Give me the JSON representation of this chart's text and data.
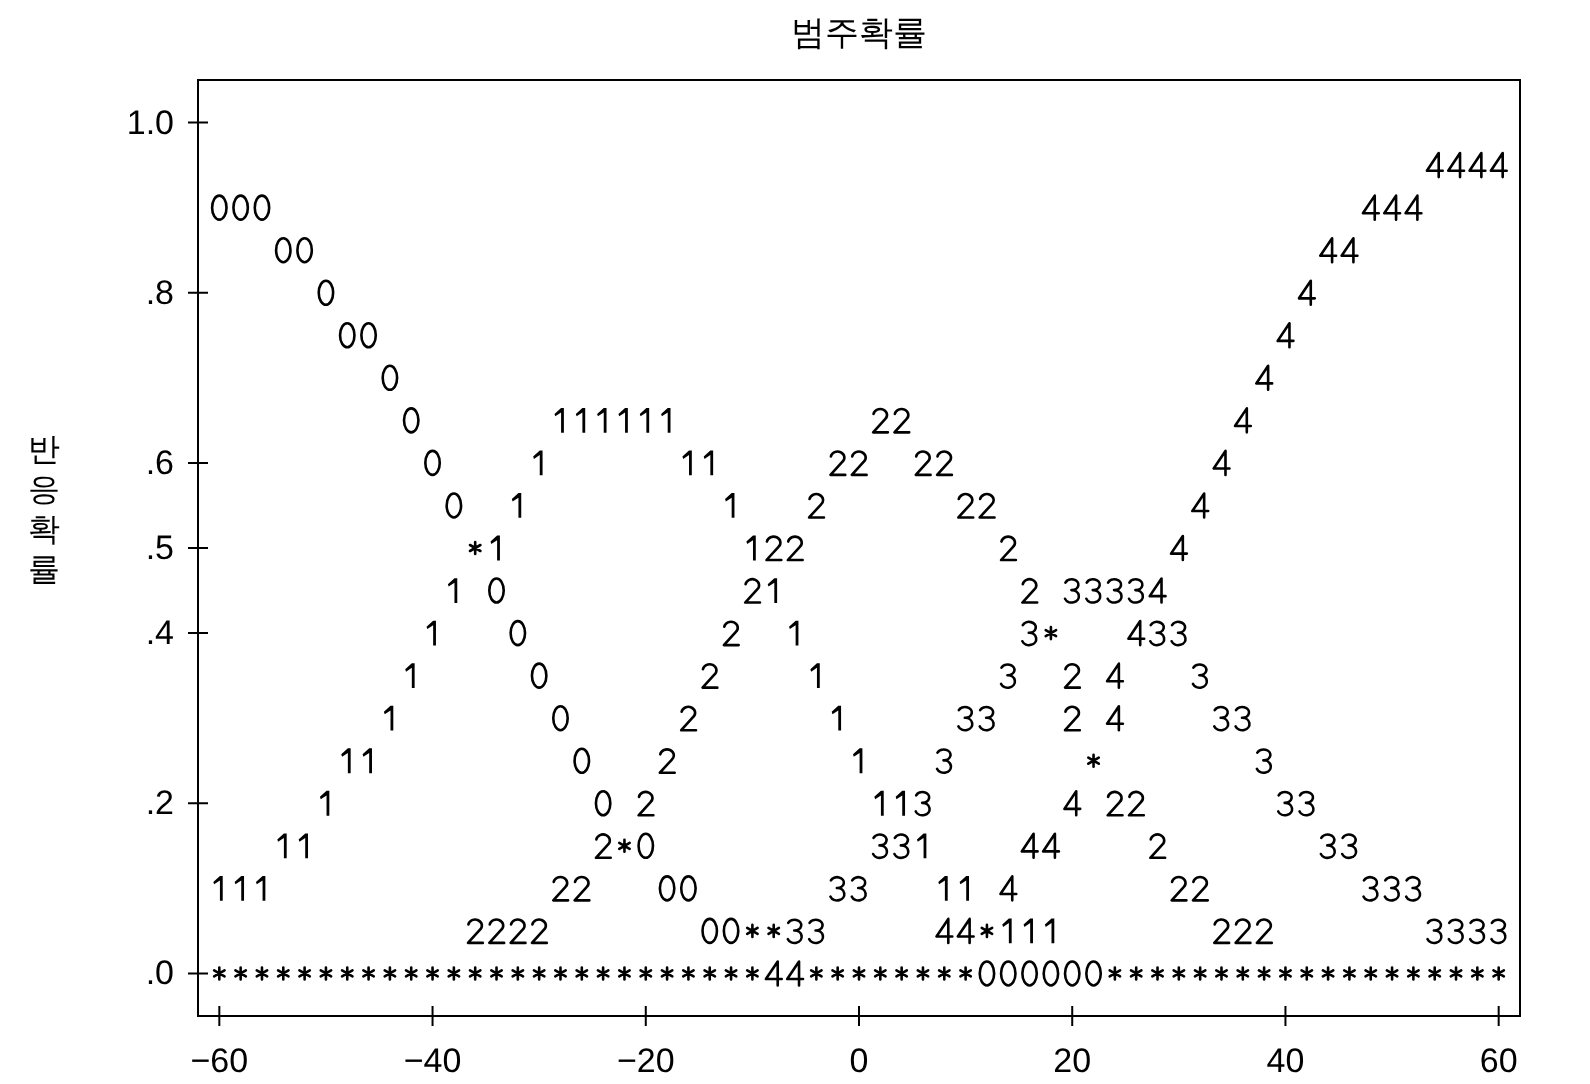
{
  "chart_data": {
    "type": "scatter",
    "title": "범주확률",
    "ylabel": "반응확률",
    "xlim": [
      -62,
      62
    ],
    "ylim": [
      -0.05,
      1.05
    ],
    "xticks": [
      -60,
      -40,
      -20,
      0,
      20,
      40,
      60
    ],
    "yticks": [
      {
        "value": 1,
        "label": "1.0"
      },
      {
        "value": 0.8,
        "label": ".8"
      },
      {
        "value": 0.6,
        "label": ".6"
      },
      {
        "value": 0.5,
        "label": ".5"
      },
      {
        "value": 0.4,
        "label": ".4"
      },
      {
        "value": 0.2,
        "label": ".2"
      },
      {
        "value": 0,
        "label": ".0"
      }
    ],
    "series": [
      {
        "color": "#000000",
        "x": [
          -60,
          -58,
          -56,
          -54,
          -52,
          -50,
          -48,
          -46,
          -44,
          -42,
          -40,
          -38,
          -34,
          -32,
          -30,
          -28,
          -26,
          -24,
          -20,
          -18,
          -16,
          -14,
          -12,
          12,
          14,
          16,
          18,
          20,
          22
        ],
        "values": [
          0.9,
          0.9,
          0.9,
          0.85,
          0.85,
          0.8,
          0.75,
          0.75,
          0.7,
          0.65,
          0.6,
          0.55,
          0.45,
          0.4,
          0.35,
          0.3,
          0.25,
          0.2,
          0.15,
          0.1,
          0.1,
          0.05,
          0.05,
          0,
          0,
          0,
          0,
          0,
          0
        ]
      },
      {
        "color": "#000000",
        "x": [
          -60,
          -58,
          -56,
          -54,
          -52,
          -50,
          -48,
          -46,
          -44,
          -42,
          -40,
          -38,
          -34,
          -32,
          -30,
          -28,
          -26,
          -24,
          -22,
          -20,
          -18,
          -16,
          -14,
          -12,
          -10,
          -8,
          -6,
          -4,
          -2,
          0,
          2,
          4,
          6,
          8,
          10,
          14,
          16,
          18
        ],
        "values": [
          0.1,
          0.1,
          0.1,
          0.15,
          0.15,
          0.2,
          0.25,
          0.25,
          0.3,
          0.35,
          0.4,
          0.45,
          0.5,
          0.55,
          0.6,
          0.65,
          0.65,
          0.65,
          0.65,
          0.65,
          0.65,
          0.6,
          0.6,
          0.55,
          0.5,
          0.45,
          0.4,
          0.35,
          0.3,
          0.25,
          0.2,
          0.2,
          0.15,
          0.1,
          0.1,
          0.05,
          0.05,
          0.05
        ]
      },
      {
        "color": "#000000",
        "x": [
          -36,
          -34,
          -32,
          -30,
          -28,
          -26,
          -24,
          -20,
          -18,
          -16,
          -14,
          -12,
          -10,
          -8,
          -6,
          -4,
          -2,
          0,
          2,
          4,
          6,
          8,
          10,
          12,
          14,
          16,
          20,
          20,
          24,
          26,
          28,
          30,
          32,
          34,
          36,
          38
        ],
        "values": [
          0.05,
          0.05,
          0.05,
          0.05,
          0.1,
          0.1,
          0.15,
          0.2,
          0.25,
          0.3,
          0.35,
          0.4,
          0.45,
          0.5,
          0.5,
          0.55,
          0.6,
          0.6,
          0.65,
          0.65,
          0.6,
          0.6,
          0.55,
          0.55,
          0.5,
          0.45,
          0.35,
          0.3,
          0.2,
          0.2,
          0.15,
          0.1,
          0.1,
          0.05,
          0.05,
          0.05
        ]
      },
      {
        "color": "#000000",
        "x": [
          -6,
          -4,
          -2,
          0,
          2,
          4,
          6,
          8,
          10,
          12,
          14,
          16,
          20,
          22,
          24,
          26,
          28,
          30,
          32,
          34,
          36,
          38,
          40,
          42,
          44,
          46,
          48,
          50,
          52,
          54,
          56,
          58,
          60
        ],
        "values": [
          0.05,
          0.05,
          0.1,
          0.1,
          0.15,
          0.15,
          0.2,
          0.25,
          0.3,
          0.3,
          0.35,
          0.4,
          0.45,
          0.45,
          0.45,
          0.45,
          0.4,
          0.4,
          0.35,
          0.3,
          0.3,
          0.25,
          0.2,
          0.2,
          0.15,
          0.15,
          0.1,
          0.1,
          0.1,
          0.05,
          0.05,
          0.05,
          0.05
        ]
      },
      {
        "color": "#000000",
        "x": [
          -8,
          -6,
          8,
          10,
          14,
          16,
          18,
          20,
          24,
          24,
          26,
          28,
          30,
          32,
          34,
          36,
          38,
          40,
          42,
          44,
          46,
          48,
          50,
          52,
          54,
          56,
          58,
          60
        ],
        "values": [
          0,
          0,
          0.05,
          0.05,
          0.1,
          0.15,
          0.15,
          0.2,
          0.3,
          0.35,
          0.4,
          0.45,
          0.5,
          0.55,
          0.6,
          0.65,
          0.7,
          0.75,
          0.8,
          0.85,
          0.85,
          0.9,
          0.9,
          0.9,
          0.95,
          0.95,
          0.95,
          0.95
        ]
      },
      {
        "color": "#000000",
        "x": [
          -36,
          18,
          22,
          -22,
          -10,
          -8,
          12,
          -60,
          -58,
          -56,
          -54,
          -52,
          -50,
          -48,
          -46,
          -44,
          -42,
          -40,
          -38,
          -36,
          -34,
          -32,
          -30,
          -28,
          -26,
          -24,
          -22,
          -20,
          -18,
          -16,
          -14,
          -12,
          -10,
          -4,
          -2,
          0,
          2,
          4,
          6,
          8,
          10,
          24,
          26,
          28,
          30,
          32,
          34,
          36,
          38,
          40,
          42,
          44,
          46,
          48,
          50,
          52,
          54,
          56,
          58,
          60
        ],
        "values": [
          0.5,
          0.4,
          0.25,
          0.15,
          0.05,
          0.05,
          0.05,
          0,
          0,
          0,
          0,
          0,
          0,
          0,
          0,
          0,
          0,
          0,
          0,
          0,
          0,
          0,
          0,
          0,
          0,
          0,
          0,
          0,
          0,
          0,
          0,
          0,
          0,
          0,
          0,
          0,
          0,
          0,
          0,
          0,
          0,
          0,
          0,
          0,
          0,
          0,
          0,
          0,
          0,
          0,
          0,
          0,
          0,
          0,
          0,
          0,
          0,
          0,
          0,
          0
        ]
      }
    ]
  }
}
